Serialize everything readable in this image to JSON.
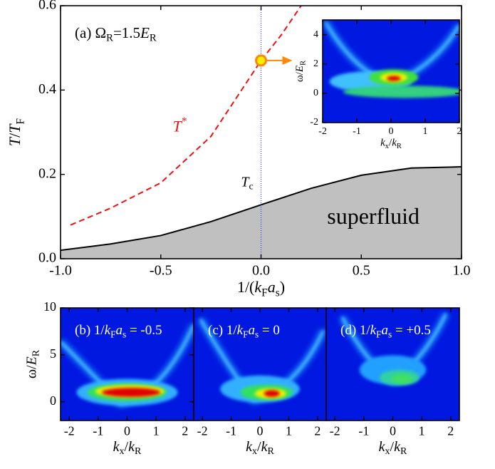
{
  "chart_data": [
    {
      "type": "line",
      "xlim": [
        -1,
        1
      ],
      "ylim": [
        0,
        0.6
      ],
      "xticks": [
        {
          "value": -1,
          "label": "-1.0"
        },
        {
          "value": -0.5,
          "label": "-0.5"
        },
        {
          "value": 0,
          "label": "0.0"
        },
        {
          "value": 0.5,
          "label": "0.5"
        },
        {
          "value": 1,
          "label": "1.0"
        }
      ],
      "yticks": [
        {
          "value": 0,
          "label": "0.0"
        },
        {
          "value": 0.2,
          "label": "0.2"
        },
        {
          "value": 0.4,
          "label": "0.4"
        },
        {
          "value": 0.6,
          "label": "0.6"
        }
      ],
      "xlabel": [
        {
          "text": "1/("
        },
        {
          "text": "k",
          "italic": true
        },
        {
          "text": "F",
          "sub": true
        },
        {
          "text": "a",
          "italic": true
        },
        {
          "text": "s",
          "sub": true
        },
        {
          "text": ")"
        }
      ],
      "ylabel": [
        {
          "text": "T",
          "italic": true
        },
        {
          "text": "/"
        },
        {
          "text": "T",
          "italic": true
        },
        {
          "text": "F",
          "sub": true
        }
      ],
      "panel_label": [
        {
          "text": "(a) Ω"
        },
        {
          "text": "R",
          "sub": true
        },
        {
          "text": "=1.5"
        },
        {
          "text": "E",
          "italic": true
        },
        {
          "text": "R",
          "sub": true
        }
      ],
      "series": [
        {
          "label": [
            {
              "text": "T",
              "italic": true
            },
            {
              "text": "c",
              "sub": true
            }
          ],
          "color": "#000000",
          "fill": "#c0c0c0",
          "dash": false,
          "x": [
            -1,
            -0.75,
            -0.5,
            -0.25,
            0,
            0.25,
            0.5,
            0.75,
            1
          ],
          "values": [
            0.02,
            0.035,
            0.055,
            0.088,
            0.128,
            0.167,
            0.198,
            0.215,
            0.218
          ]
        },
        {
          "label": [
            {
              "text": "T",
              "italic": true
            },
            {
              "text": "*",
              "sup": true
            }
          ],
          "color": "#ee1111",
          "dash": true,
          "x": [
            -0.95,
            -0.75,
            -0.5,
            -0.25,
            0,
            0.1,
            0.2
          ],
          "values": [
            0.08,
            0.12,
            0.18,
            0.29,
            0.47,
            0.53,
            0.6
          ]
        }
      ],
      "area_label": "superfluid",
      "vline": {
        "x": 0,
        "color": "#3333ff"
      },
      "marker": {
        "x": 0,
        "y": 0.47,
        "color": "#ff8800"
      }
    },
    {
      "type": "heatmap",
      "xlim": [
        -2,
        2
      ],
      "ylim": [
        -2,
        5
      ],
      "xticks": [
        -2,
        -1,
        0,
        1,
        2
      ],
      "yticks": [
        -2,
        0,
        2,
        4
      ],
      "xlabel": [
        {
          "text": "k",
          "italic": true
        },
        {
          "text": "x",
          "sub": true
        },
        {
          "text": "/"
        },
        {
          "text": "k",
          "italic": true
        },
        {
          "text": "R",
          "sub": true
        }
      ],
      "ylabel": [
        {
          "text": "ω/"
        },
        {
          "text": "E",
          "italic": true
        },
        {
          "text": "R",
          "sub": true
        }
      ],
      "background": "#0018e0"
    },
    {
      "type": "heatmap",
      "xlim": [
        -2.3,
        2.3
      ],
      "ylim": [
        -2,
        10
      ],
      "xticks": [
        -2,
        -1,
        0,
        1,
        2
      ],
      "yticks": [
        0,
        5,
        10
      ],
      "xlabel": [
        {
          "text": "k",
          "italic": true
        },
        {
          "text": "x",
          "sub": true
        },
        {
          "text": "/"
        },
        {
          "text": "k",
          "italic": true
        },
        {
          "text": "R",
          "sub": true
        }
      ],
      "ylabel": [
        {
          "text": "ω/"
        },
        {
          "text": "E",
          "italic": true
        },
        {
          "text": "R",
          "sub": true
        }
      ],
      "title": [
        {
          "text": "(b) 1/"
        },
        {
          "text": "k",
          "italic": true
        },
        {
          "text": "F",
          "sub": true
        },
        {
          "text": "a",
          "italic": true
        },
        {
          "text": "s",
          "sub": true
        },
        {
          "text": " = -0.5"
        }
      ],
      "background": "#0018e0"
    },
    {
      "type": "heatmap",
      "xlim": [
        -2.3,
        2.3
      ],
      "ylim": [
        -2,
        10
      ],
      "xticks": [
        -2,
        -1,
        0,
        1,
        2
      ],
      "xlabel": [
        {
          "text": "k",
          "italic": true
        },
        {
          "text": "x",
          "sub": true
        },
        {
          "text": "/"
        },
        {
          "text": "k",
          "italic": true
        },
        {
          "text": "R",
          "sub": true
        }
      ],
      "title": [
        {
          "text": "(c) 1/"
        },
        {
          "text": "k",
          "italic": true
        },
        {
          "text": "F",
          "sub": true
        },
        {
          "text": "a",
          "italic": true
        },
        {
          "text": "s",
          "sub": true
        },
        {
          "text": " = 0"
        }
      ],
      "background": "#0018e0"
    },
    {
      "type": "heatmap",
      "xlim": [
        -2.3,
        2.3
      ],
      "ylim": [
        -2,
        10
      ],
      "xticks": [
        -2,
        -1,
        0,
        1,
        2
      ],
      "xlabel": [
        {
          "text": "k",
          "italic": true
        },
        {
          "text": "x",
          "sub": true
        },
        {
          "text": "/"
        },
        {
          "text": "k",
          "italic": true
        },
        {
          "text": "R",
          "sub": true
        }
      ],
      "title": [
        {
          "text": "(d) 1/"
        },
        {
          "text": "k",
          "italic": true
        },
        {
          "text": "F",
          "sub": true
        },
        {
          "text": "a",
          "italic": true
        },
        {
          "text": "s",
          "sub": true
        },
        {
          "text": " = +0.5"
        }
      ],
      "background": "#0018e0"
    }
  ]
}
